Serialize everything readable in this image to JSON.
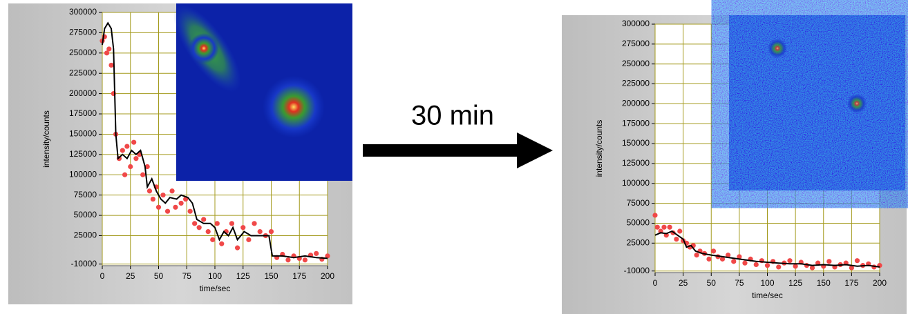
{
  "arrow_label": "30 min",
  "chart_data": [
    {
      "type": "line",
      "xlabel": "time/sec",
      "ylabel": "intensity/counts",
      "xlim": [
        0,
        200
      ],
      "ylim": [
        -12000,
        300000
      ],
      "xticks": [
        0,
        25,
        50,
        75,
        100,
        125,
        150,
        175,
        200
      ],
      "yticks": [
        -10000,
        25000,
        50000,
        75000,
        100000,
        125000,
        150000,
        175000,
        200000,
        225000,
        250000,
        275000,
        300000
      ],
      "grid": true,
      "grid_color": "#a39a1c",
      "series": [
        {
          "style": "markers",
          "color": "#f04848",
          "x": [
            0,
            2,
            4,
            6,
            8,
            10,
            12,
            15,
            18,
            20,
            22,
            25,
            28,
            30,
            33,
            36,
            40,
            42,
            45,
            48,
            50,
            54,
            58,
            62,
            65,
            70,
            74,
            78,
            82,
            86,
            90,
            94,
            98,
            102,
            106,
            110,
            115,
            120,
            125,
            130,
            135,
            140,
            145,
            150,
            155,
            160,
            165,
            170,
            175,
            180,
            185,
            190,
            195,
            200
          ],
          "values": [
            265000,
            270000,
            250000,
            255000,
            235000,
            200000,
            150000,
            120000,
            130000,
            100000,
            135000,
            110000,
            140000,
            120000,
            125000,
            100000,
            110000,
            80000,
            70000,
            85000,
            60000,
            75000,
            55000,
            80000,
            60000,
            65000,
            70000,
            55000,
            40000,
            35000,
            45000,
            30000,
            20000,
            40000,
            15000,
            30000,
            40000,
            10000,
            35000,
            20000,
            40000,
            30000,
            25000,
            30000,
            -2000,
            2000,
            -5000,
            0,
            -3000,
            -5000,
            1000,
            3000,
            -4000,
            0
          ]
        },
        {
          "style": "line",
          "color": "#000000",
          "x": [
            0,
            2,
            5,
            8,
            10,
            12,
            14,
            18,
            22,
            26,
            30,
            34,
            38,
            40,
            44,
            48,
            52,
            56,
            60,
            66,
            70,
            76,
            80,
            84,
            90,
            96,
            100,
            104,
            108,
            112,
            116,
            120,
            126,
            132,
            140,
            148,
            151,
            160,
            170,
            180,
            190,
            200
          ],
          "values": [
            260000,
            280000,
            287000,
            280000,
            255000,
            150000,
            120000,
            125000,
            120000,
            130000,
            125000,
            130000,
            110000,
            85000,
            95000,
            80000,
            70000,
            65000,
            72000,
            70000,
            75000,
            72000,
            65000,
            45000,
            40000,
            40000,
            35000,
            20000,
            30000,
            25000,
            35000,
            20000,
            30000,
            25000,
            25000,
            25000,
            0,
            0,
            -2000,
            0,
            -2000,
            -3000
          ]
        }
      ]
    },
    {
      "type": "line",
      "xlabel": "time/sec",
      "ylabel": "intensity/counts",
      "xlim": [
        0,
        200
      ],
      "ylim": [
        -12000,
        300000
      ],
      "xticks": [
        0,
        25,
        50,
        75,
        100,
        125,
        150,
        175,
        200
      ],
      "yticks": [
        -10000,
        25000,
        50000,
        75000,
        100000,
        125000,
        150000,
        175000,
        200000,
        225000,
        250000,
        275000,
        300000
      ],
      "grid": true,
      "grid_color": "#a39a1c",
      "series": [
        {
          "style": "markers",
          "color": "#f04848",
          "x": [
            0,
            2,
            5,
            8,
            10,
            13,
            16,
            19,
            22,
            25,
            28,
            31,
            34,
            37,
            40,
            44,
            48,
            52,
            56,
            60,
            65,
            70,
            75,
            80,
            85,
            90,
            95,
            100,
            105,
            110,
            115,
            120,
            125,
            130,
            135,
            140,
            145,
            150,
            155,
            160,
            165,
            170,
            175,
            180,
            185,
            190,
            195,
            200
          ],
          "values": [
            60000,
            45000,
            40000,
            45000,
            35000,
            45000,
            38000,
            30000,
            40000,
            28000,
            25000,
            20000,
            22000,
            10000,
            15000,
            12000,
            5000,
            15000,
            8000,
            5000,
            10000,
            2000,
            8000,
            0,
            5000,
            -2000,
            3000,
            -3000,
            2000,
            -5000,
            0,
            3000,
            -4000,
            1000,
            -3000,
            -6000,
            0,
            -4000,
            2000,
            -5000,
            -2000,
            0,
            -6000,
            3000,
            -3000,
            -1000,
            -5000,
            -3000
          ]
        },
        {
          "style": "line",
          "color": "#000000",
          "x": [
            0,
            5,
            10,
            15,
            20,
            25,
            28,
            32,
            36,
            42,
            50,
            60,
            70,
            80,
            90,
            100,
            110,
            120,
            130,
            140,
            150,
            160,
            170,
            180,
            190,
            200
          ],
          "values": [
            35000,
            38000,
            37000,
            40000,
            35000,
            30000,
            20000,
            22000,
            15000,
            12000,
            10000,
            8000,
            6000,
            4000,
            2000,
            1000,
            0,
            -1000,
            -1000,
            -3000,
            -2000,
            -3000,
            -2000,
            -4000,
            -3000,
            -5000
          ]
        }
      ]
    }
  ]
}
